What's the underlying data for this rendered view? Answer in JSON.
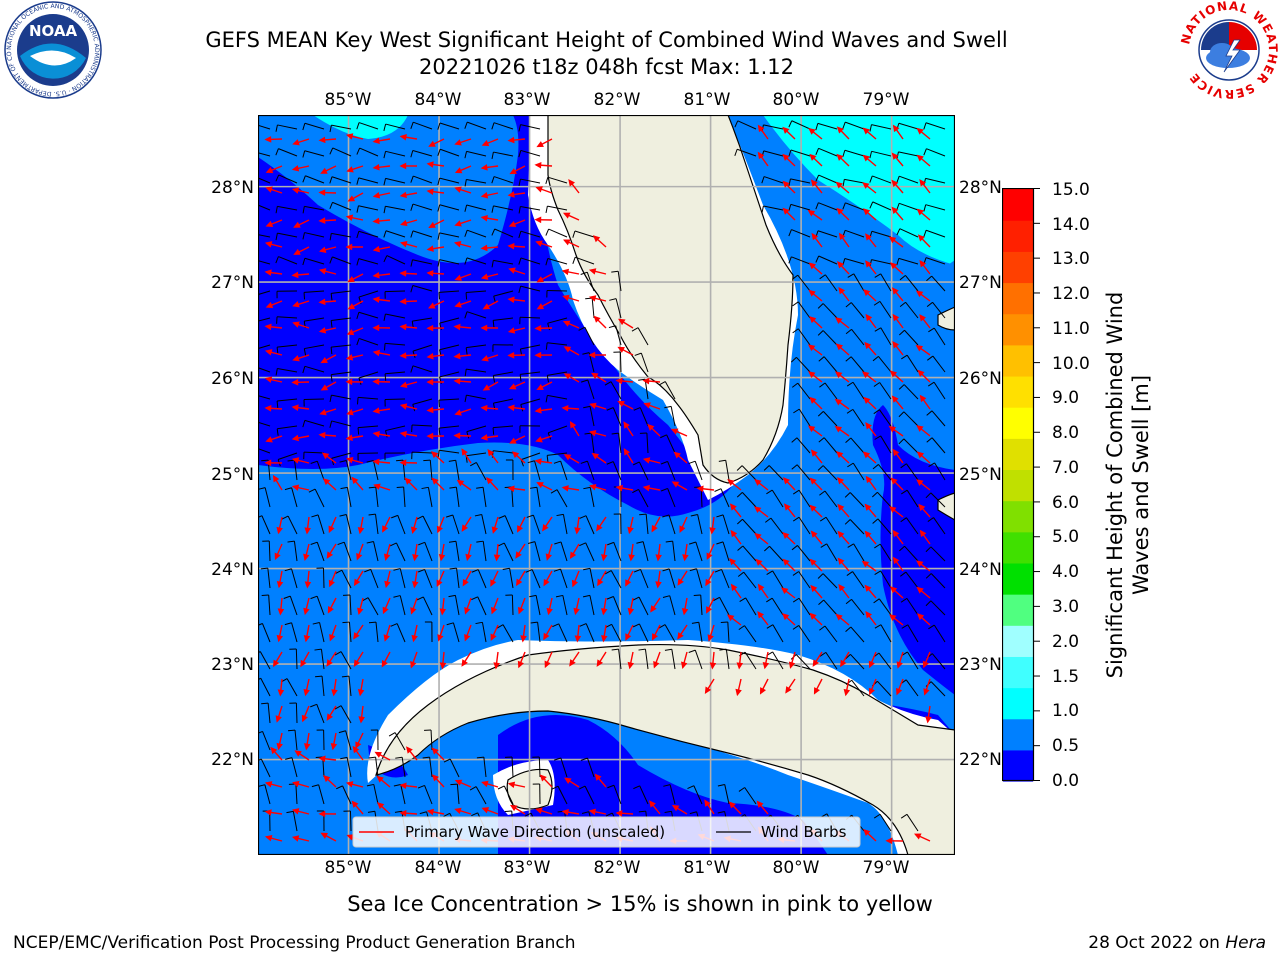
{
  "title": {
    "line1": "GEFS MEAN Key West Significant Height of Combined Wind Waves and Swell",
    "line2": "20221026 t18z 048h fcst   Max: 1.12"
  },
  "map": {
    "lon_ticks": [
      "85°W",
      "84°W",
      "83°W",
      "82°W",
      "81°W",
      "80°W",
      "79°W"
    ],
    "lat_ticks": [
      "28°N",
      "27°N",
      "26°N",
      "25°N",
      "24°N",
      "23°N",
      "22°N"
    ],
    "extent": {
      "lon_min": -86.0,
      "lon_max": -78.3,
      "lat_min": 21.0,
      "lat_max": 28.75
    },
    "colors": {
      "land": "#efefdf",
      "band_0_0_5": "#0000ff",
      "band_0_5_1_0": "#0080ff",
      "band_1_0_1_5": "#00ffff",
      "wave_arrows": "#ff0000",
      "wind_barbs": "#000000",
      "grid": "#b0b0b0"
    }
  },
  "legend": {
    "wave_label": "Primary Wave Direction (unscaled)",
    "wind_label": "Wind Barbs"
  },
  "colorbar": {
    "title": "Significant Height of Combined Wind Waves and Swell [m]",
    "labels": [
      "15.0",
      "14.0",
      "13.0",
      "12.0",
      "11.0",
      "10.0",
      "9.0",
      "8.0",
      "7.0",
      "6.0",
      "5.0",
      "4.0",
      "3.0",
      "2.0",
      "1.5",
      "1.0",
      "0.5",
      "0.0"
    ],
    "colors_bottom_to_top": [
      "#0000ff",
      "#0080ff",
      "#00ffff",
      "#40ffff",
      "#a0ffff",
      "#50ff80",
      "#00e000",
      "#40e000",
      "#80e000",
      "#c0e000",
      "#e0e000",
      "#ffff00",
      "#ffe000",
      "#ffc000",
      "#ff9000",
      "#ff7000",
      "#ff4000",
      "#ff2000",
      "#ff0000"
    ]
  },
  "logos": {
    "noaa_text": "NOAA",
    "noaa_ring": "NATIONAL OCEANIC AND ATMOSPHERIC ADMINISTRATION · U.S. DEPARTMENT OF COMMERCE",
    "nws_ring": "NATIONAL WEATHER SERVICE"
  },
  "subtitle": "Sea Ice Concentration > 15% is shown in pink to yellow",
  "footer": {
    "left": "NCEP/EMC/Verification Post Processing Product Generation Branch",
    "right_prefix": "28 Oct 2022 on ",
    "right_host": "Hera"
  }
}
